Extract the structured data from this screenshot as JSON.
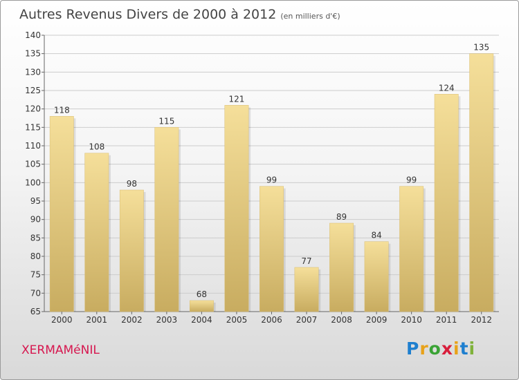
{
  "title": "Autres Revenus Divers de 2000 à 2012",
  "unit": "(en milliers d'€)",
  "commune": "XERMAMéNIL",
  "logo": {
    "letters": [
      "P",
      "r",
      "o",
      "x",
      "i",
      "t",
      "i"
    ],
    "colors": [
      "#1e7fcf",
      "#e8a21a",
      "#3aa335",
      "#d81e3c",
      "#e8a21a",
      "#1e7fcf",
      "#7fb23a"
    ]
  },
  "colors": {
    "bar": "#e6cc82",
    "bar_light": "#f5df9a",
    "axis_text": "#333333",
    "grid": "#cccccc"
  },
  "chart_data": {
    "type": "bar",
    "categories": [
      "2000",
      "2001",
      "2002",
      "2003",
      "2004",
      "2005",
      "2006",
      "2007",
      "2008",
      "2009",
      "2010",
      "2011",
      "2012"
    ],
    "values": [
      118,
      108,
      98,
      115,
      68,
      121,
      99,
      77,
      89,
      84,
      99,
      124,
      135
    ],
    "ylim": [
      65,
      140
    ],
    "yticks": [
      65,
      70,
      75,
      80,
      85,
      90,
      95,
      100,
      105,
      110,
      115,
      120,
      125,
      130,
      135,
      140
    ],
    "grid": true
  }
}
